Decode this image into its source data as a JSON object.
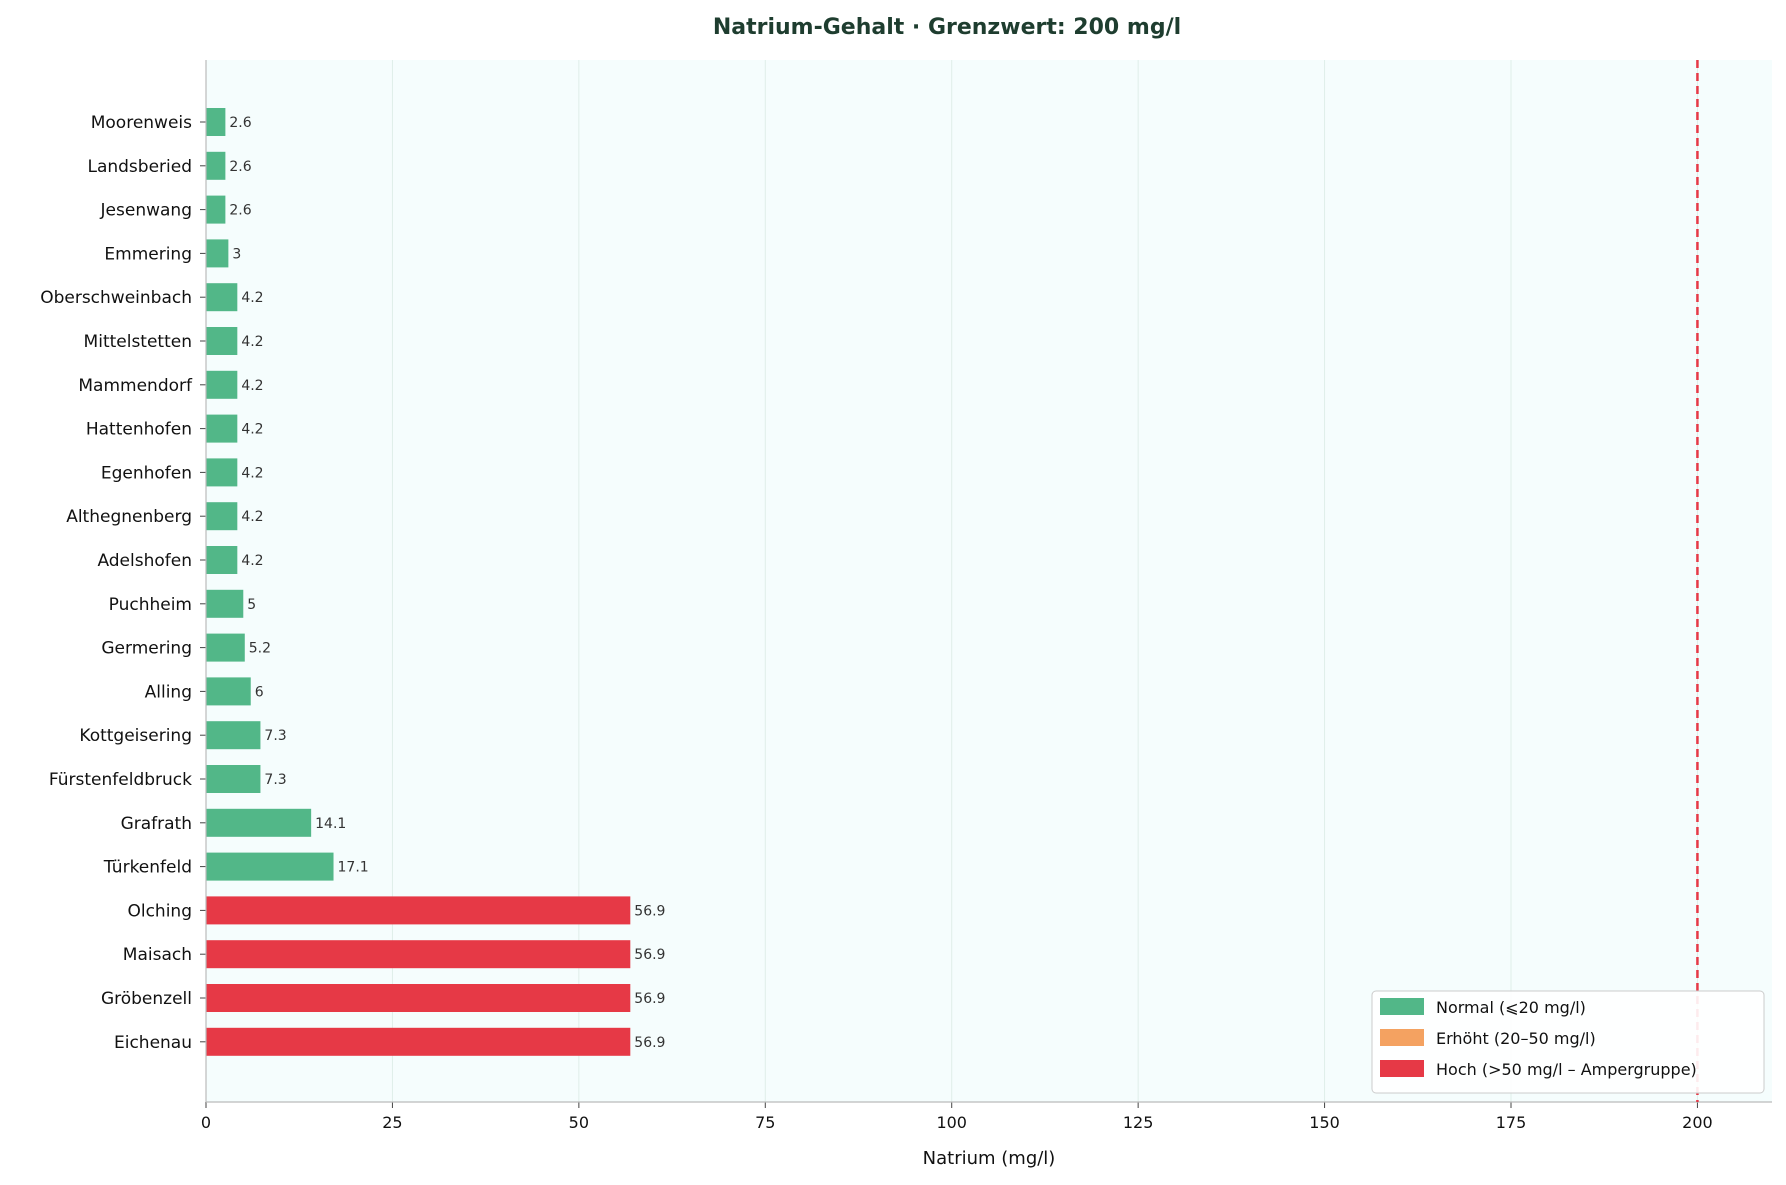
{
  "chart_data": {
    "type": "bar",
    "orientation": "horizontal",
    "title": "Natrium-Gehalt · Grenzwert: 200 mg/l",
    "xlabel": "Natrium (mg/l)",
    "ylabel": "",
    "xlim": [
      0,
      210
    ],
    "xticks": [
      0,
      25,
      50,
      75,
      100,
      125,
      150,
      175,
      200
    ],
    "grid": "vertical",
    "reference_line": {
      "value": 200,
      "color": "#e63946",
      "style": "dashed"
    },
    "categories": [
      "Moorenweis",
      "Landsberied",
      "Jesenwang",
      "Emmering",
      "Oberschweinbach",
      "Mittelstetten",
      "Mammendorf",
      "Hattenhofen",
      "Egenhofen",
      "Althegnenberg",
      "Adelshofen",
      "Puchheim",
      "Germering",
      "Alling",
      "Kottgeisering",
      "Fürstenfeldbruck",
      "Grafrath",
      "Türkenfeld",
      "Olching",
      "Maisach",
      "Gröbenzell",
      "Eichenau"
    ],
    "values": [
      2.6,
      2.6,
      2.6,
      3,
      4.2,
      4.2,
      4.2,
      4.2,
      4.2,
      4.2,
      4.2,
      5,
      5.2,
      6,
      7.3,
      7.3,
      14.1,
      17.1,
      56.9,
      56.9,
      56.9,
      56.9
    ],
    "value_labels": [
      "2.6",
      "2.6",
      "2.6",
      "3",
      "4.2",
      "4.2",
      "4.2",
      "4.2",
      "4.2",
      "4.2",
      "4.2",
      "5",
      "5.2",
      "6",
      "7.3",
      "7.3",
      "14.1",
      "17.1",
      "56.9",
      "56.9",
      "56.9",
      "56.9"
    ],
    "bar_classes": [
      "normal",
      "normal",
      "normal",
      "normal",
      "normal",
      "normal",
      "normal",
      "normal",
      "normal",
      "normal",
      "normal",
      "normal",
      "normal",
      "normal",
      "normal",
      "normal",
      "normal",
      "normal",
      "hoch",
      "hoch",
      "hoch",
      "hoch"
    ],
    "legend": {
      "placement": "bottom-right",
      "entries": [
        {
          "key": "normal",
          "label": "Normal (⩽20 mg/l)",
          "color": "#52b788"
        },
        {
          "key": "erhoeht",
          "label": "Erhöht (20–50 mg/l)",
          "color": "#f4a261"
        },
        {
          "key": "hoch",
          "label": "Hoch (>50 mg/l – Ampergruppe)",
          "color": "#e63946"
        }
      ]
    },
    "colors": {
      "plot_background": "#f5fdfd",
      "grid": "#dfeee9",
      "axis": "#bbbbbb"
    }
  }
}
